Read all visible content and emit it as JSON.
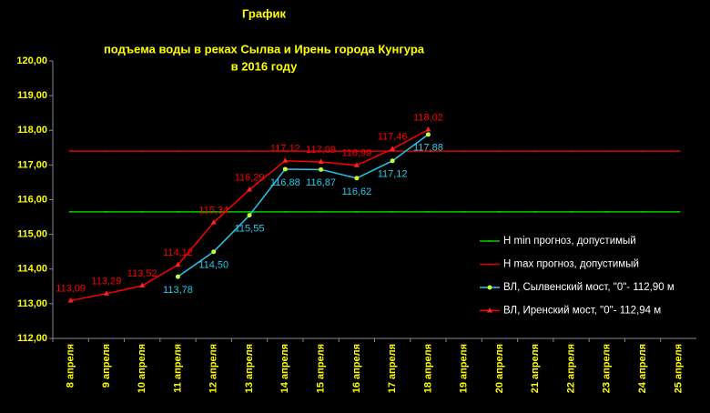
{
  "chart_data": {
    "type": "line",
    "title": "График",
    "subtitle": "подъема воды в реках Сылва и Ирень города Кунгура",
    "subtitle2": "в 2016 году",
    "categories": [
      "8 апреля",
      "9 апреля",
      "10 апреля",
      "11 апреля",
      "12 апреля",
      "13 апреля",
      "14 апреля",
      "15 апреля",
      "16 апреля",
      "17 апреля",
      "18 апреля",
      "19 апреля",
      "20 апреля",
      "21 апреля",
      "22 апреля",
      "23 апреля",
      "24 апреля",
      "25 апреля"
    ],
    "ylim": [
      112,
      120
    ],
    "yticks": [
      {
        "value": 112,
        "label": "112,00"
      },
      {
        "value": 113,
        "label": "113,00"
      },
      {
        "value": 114,
        "label": "114,00"
      },
      {
        "value": 115,
        "label": "115,00"
      },
      {
        "value": 116,
        "label": "116,00"
      },
      {
        "value": 117,
        "label": "117,00"
      },
      {
        "value": 118,
        "label": "118,00"
      },
      {
        "value": 119,
        "label": "119,00"
      },
      {
        "value": 120,
        "label": "120,00"
      }
    ],
    "series": [
      {
        "name": "Н min прогноз, допустимый",
        "color": "#00cc00",
        "marker": "dash",
        "values": [
          115.65,
          115.65,
          115.65,
          115.65,
          115.65,
          115.65,
          115.65,
          115.65,
          115.65,
          115.65,
          115.65,
          115.65,
          115.65,
          115.65,
          115.65,
          115.65,
          115.65,
          115.65
        ]
      },
      {
        "name": "Н max прогноз, допустимый",
        "color": "#dd0000",
        "marker": "dash",
        "values": [
          117.4,
          117.4,
          117.4,
          117.4,
          117.4,
          117.4,
          117.4,
          117.4,
          117.4,
          117.4,
          117.4,
          117.4,
          117.4,
          117.4,
          117.4,
          117.4,
          117.4,
          117.4
        ]
      },
      {
        "name": "ВЛ, Сылвенский мост, \"0\"- 112,90 м",
        "color": "#22ccee",
        "marker": "circle",
        "marker_color": "#ccff33",
        "label_position": "below",
        "values": [
          null,
          null,
          null,
          113.78,
          114.5,
          115.55,
          116.88,
          116.87,
          116.62,
          117.12,
          117.88,
          null,
          null,
          null,
          null,
          null,
          null,
          null
        ],
        "value_labels": [
          null,
          null,
          null,
          "113,78",
          "114,50",
          "115,55",
          "116,88",
          "116,87",
          "116,62",
          "117,12",
          "117,88",
          null,
          null,
          null,
          null,
          null,
          null,
          null
        ]
      },
      {
        "name": "ВЛ, Иренский мост, \"0\"- 112,94 м",
        "color": "#ff0000",
        "marker": "triangle",
        "marker_color": "#ff2222",
        "label_position": "above",
        "values": [
          113.09,
          113.29,
          113.52,
          114.12,
          115.34,
          116.29,
          117.12,
          117.09,
          116.99,
          117.46,
          118.02,
          null,
          null,
          null,
          null,
          null,
          null,
          null
        ],
        "value_labels": [
          "113,09",
          "113,29",
          "113,52",
          "114,12",
          "115,34",
          "116,29",
          "117,12",
          "117,09",
          "116,99",
          "117,46",
          "118,02",
          null,
          null,
          null,
          null,
          null,
          null,
          null
        ]
      }
    ]
  }
}
